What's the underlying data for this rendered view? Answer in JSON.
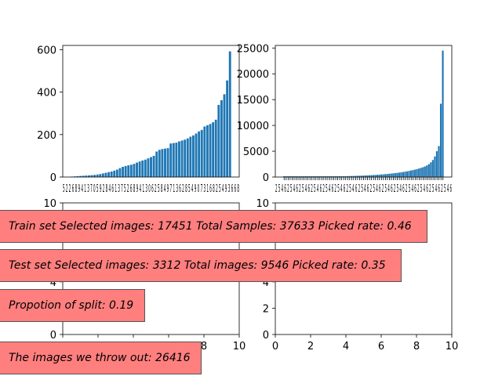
{
  "colors": {
    "bar": "#1f77b4",
    "annotation_bg": "#ff7f7f",
    "annotation_border": "#555555"
  },
  "chart_data": [
    {
      "type": "bar",
      "title": "",
      "xlabel": "",
      "ylabel": "",
      "ylim": [
        0,
        620
      ],
      "yticks": [
        0,
        200,
        400,
        600
      ],
      "values": [
        2,
        3,
        4,
        5,
        6,
        7,
        8,
        9,
        10,
        12,
        14,
        17,
        20,
        23,
        26,
        30,
        35,
        42,
        48,
        52,
        55,
        58,
        62,
        68,
        73,
        78,
        82,
        88,
        94,
        100,
        120,
        128,
        132,
        134,
        136,
        158,
        160,
        162,
        168,
        172,
        176,
        182,
        190,
        196,
        205,
        215,
        222,
        238,
        244,
        250,
        258,
        270,
        340,
        362,
        390,
        455,
        592
      ],
      "xtick_text": "5 2 2 6 8 9 4 1 3 7 0 5 9 2 8 4 6 1 3 7 5 2 6 8 9 4 1 3 0 6 2 5 8 4 9 7 1 3 6 2 8 5 4 9 0 7 3 1 6 8 2 5 4 9 3 6 6 8"
    },
    {
      "type": "bar",
      "title": "",
      "xlabel": "",
      "ylabel": "",
      "ylim": [
        0,
        25500
      ],
      "yticks": [
        0,
        5000,
        10000,
        15000,
        20000,
        25000
      ],
      "values": [
        15,
        18,
        20,
        22,
        25,
        28,
        30,
        33,
        36,
        40,
        43,
        46,
        50,
        54,
        58,
        62,
        66,
        70,
        75,
        80,
        85,
        90,
        96,
        102,
        108,
        115,
        122,
        130,
        138,
        146,
        155,
        165,
        175,
        186,
        198,
        210,
        224,
        238,
        253,
        269,
        286,
        304,
        323,
        343,
        365,
        388,
        412,
        438,
        466,
        495,
        526,
        560,
        595,
        632,
        672,
        715,
        760,
        808,
        860,
        915,
        975,
        1040,
        1110,
        1185,
        1265,
        1350,
        1440,
        1540,
        1650,
        1770,
        1900,
        2050,
        2250,
        2500,
        2850,
        3300,
        4000,
        5000,
        6000,
        14200,
        24500
      ],
      "xtick_text": "2 5 4 6 2 5 4 6 2 5 4 6 2 5 4 6 2 5 4 6 2 5 4 6 2 5 4 6 2 5 4 6 2 5 4 6 2 5 4 6 2 5 4 6 2 5 4 6 2 5 4 6 2 5 4 6 2 5 4 6"
    },
    {
      "type": "bar",
      "title": "",
      "xlabel": "",
      "ylabel": "",
      "xlim": [
        0,
        10
      ],
      "ylim": [
        0,
        10
      ],
      "xticks": [
        0,
        2,
        4,
        6,
        8,
        10
      ],
      "yticks": [
        0,
        2,
        4,
        6,
        8,
        10
      ],
      "values": []
    },
    {
      "type": "bar",
      "title": "",
      "xlabel": "",
      "ylabel": "",
      "xlim": [
        0,
        10
      ],
      "ylim": [
        0,
        10
      ],
      "xticks": [
        0,
        2,
        4,
        6,
        8,
        10
      ],
      "yticks": [
        0,
        2,
        4,
        6,
        8,
        10
      ],
      "values": []
    }
  ],
  "annotations": [
    "Train set Selected images: 17451  Total Samples: 37633  Picked rate: 0.46",
    "Test set Selected images: 3312  Total images: 9546  Picked rate: 0.35",
    "Propotion of split: 0.19",
    "The images we throw out: 26416"
  ]
}
